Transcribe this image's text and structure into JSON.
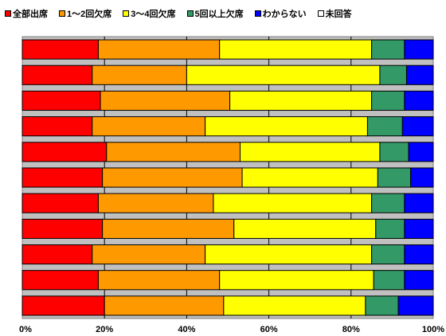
{
  "chart_data": {
    "type": "bar",
    "orientation": "horizontal",
    "stacked": "percent",
    "legend_position": "top",
    "grid": true,
    "xlim": [
      0,
      100
    ],
    "x_ticks": [
      "0%",
      "20%",
      "40%",
      "60%",
      "80%",
      "100%"
    ],
    "categories": [
      "",
      "",
      "",
      "",
      "",
      "",
      "",
      "",
      "",
      "",
      ""
    ],
    "series": [
      {
        "name": "全部出席",
        "color": "#ff0000",
        "values": [
          18.5,
          17,
          19,
          17,
          20.5,
          19.5,
          18.5,
          19.5,
          17,
          18.5,
          20
        ]
      },
      {
        "name": "1～2回欠席",
        "color": "#ff9900",
        "values": [
          29.5,
          23,
          31.5,
          27.5,
          32.5,
          34,
          28,
          32,
          27.5,
          29.5,
          29
        ]
      },
      {
        "name": "3～4回欠席",
        "color": "#ffff00",
        "values": [
          37,
          47,
          34.5,
          39.5,
          34,
          33,
          38.5,
          34.5,
          40.5,
          37.5,
          34.5
        ]
      },
      {
        "name": "5回以上欠席",
        "color": "#339966",
        "values": [
          8,
          6.5,
          8,
          8.5,
          7,
          8,
          8,
          7,
          8,
          7.5,
          8
        ]
      },
      {
        "name": "わからない",
        "color": "#0000ff",
        "values": [
          7,
          6.5,
          7,
          7.5,
          6,
          5.5,
          7,
          7,
          7,
          7,
          8.5
        ]
      },
      {
        "name": "未回答",
        "color": "#ffffff",
        "values": [
          0,
          0,
          0,
          0,
          0,
          0,
          0,
          0,
          0,
          0,
          0
        ]
      }
    ]
  }
}
